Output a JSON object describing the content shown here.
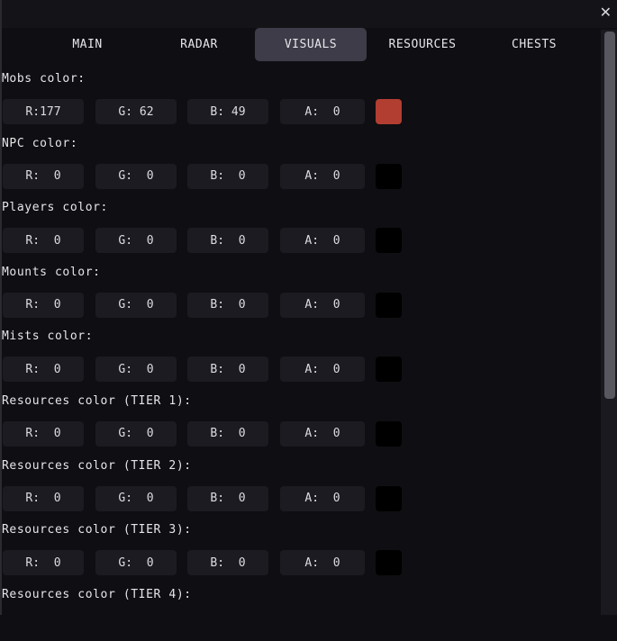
{
  "window": {
    "close_icon": "close-icon"
  },
  "tabs": [
    {
      "label": "MAIN",
      "active": false
    },
    {
      "label": "RADAR",
      "active": false
    },
    {
      "label": "VISUALS",
      "active": true
    },
    {
      "label": "RESOURCES",
      "active": false
    },
    {
      "label": "CHESTS",
      "active": false
    }
  ],
  "colors": [
    {
      "label": "Mobs color:",
      "r": "R:177",
      "g": "G: 62",
      "b": "B: 49",
      "a": "A:  0",
      "swatch": "#b13e31"
    },
    {
      "label": "NPC color:",
      "r": "R:  0",
      "g": "G:  0",
      "b": "B:  0",
      "a": "A:  0",
      "swatch": "#000000"
    },
    {
      "label": "Players color:",
      "r": "R:  0",
      "g": "G:  0",
      "b": "B:  0",
      "a": "A:  0",
      "swatch": "#000000"
    },
    {
      "label": "Mounts color:",
      "r": "R:  0",
      "g": "G:  0",
      "b": "B:  0",
      "a": "A:  0",
      "swatch": "#000000"
    },
    {
      "label": "Mists color:",
      "r": "R:  0",
      "g": "G:  0",
      "b": "B:  0",
      "a": "A:  0",
      "swatch": "#000000"
    },
    {
      "label": "Resources color (TIER 1):",
      "r": "R:  0",
      "g": "G:  0",
      "b": "B:  0",
      "a": "A:  0",
      "swatch": "#000000"
    },
    {
      "label": "Resources color (TIER 2):",
      "r": "R:  0",
      "g": "G:  0",
      "b": "B:  0",
      "a": "A:  0",
      "swatch": "#000000"
    },
    {
      "label": "Resources color (TIER 3):",
      "r": "R:  0",
      "g": "G:  0",
      "b": "B:  0",
      "a": "A:  0",
      "swatch": "#000000"
    },
    {
      "label": "Resources color (TIER 4):"
    }
  ]
}
